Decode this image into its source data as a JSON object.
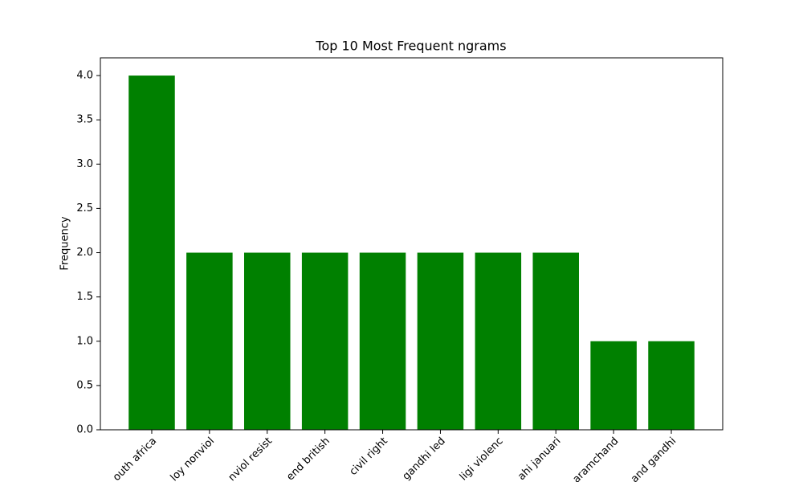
{
  "chart_data": {
    "type": "bar",
    "title": "Top 10 Most Frequent ngrams",
    "ylabel": "Frequency",
    "categories": [
      "outh africa",
      "loy nonviol",
      "nviol resist",
      "end british",
      "civil right",
      "gandhi led",
      "ligi violenc",
      "ahi januari",
      "aramchand",
      "and gandhi"
    ],
    "values": [
      4,
      2,
      2,
      2,
      2,
      2,
      2,
      2,
      1,
      1
    ],
    "color": "#008000",
    "ylim": [
      0,
      4.2
    ],
    "yticks": [
      {
        "value": 0,
        "label": "0.0"
      },
      0.5,
      {
        "value": 1,
        "label": "1.0"
      },
      1.5,
      {
        "value": 2,
        "label": "2.0"
      },
      2.5,
      {
        "value": 3,
        "label": "3.0"
      },
      3.5,
      {
        "value": 4,
        "label": "4.0"
      }
    ]
  }
}
